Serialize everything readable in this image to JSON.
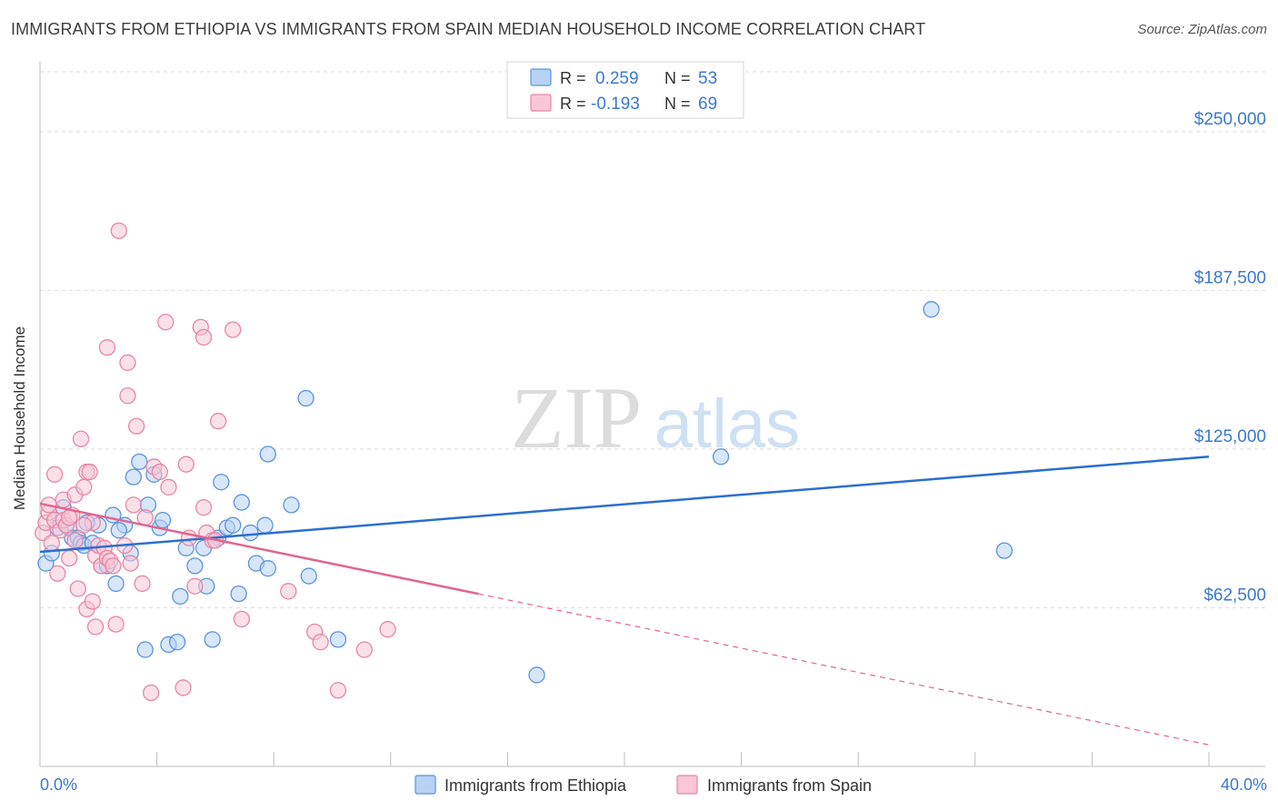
{
  "title": "IMMIGRANTS FROM ETHIOPIA VS IMMIGRANTS FROM SPAIN MEDIAN HOUSEHOLD INCOME CORRELATION CHART",
  "source": "Source: ZipAtlas.com",
  "watermark": {
    "zip": "ZIP",
    "atlas": "atlas"
  },
  "legend": {
    "ethiopia": {
      "r_label": "R =",
      "r_value": "0.259",
      "n_label": "N =",
      "n_value": "53"
    },
    "spain": {
      "r_label": "R =",
      "r_value": "-0.193",
      "n_label": "N =",
      "n_value": "69"
    }
  },
  "colors": {
    "ethiopia": "#5b93e0",
    "ethiopia_fill": "#b8d2f5",
    "ethiopia_line": "#2a6fcf",
    "spain": "#e686a6",
    "spain_fill": "#f8c6d6",
    "spain_line": "#e0668e",
    "accent_text": "#3a78d0"
  },
  "chart_data": {
    "type": "scatter",
    "title": "IMMIGRANTS FROM ETHIOPIA VS IMMIGRANTS FROM SPAIN MEDIAN HOUSEHOLD INCOME CORRELATION CHART",
    "xlabel": "",
    "ylabel": "Median Household Income",
    "xlim": [
      0,
      40
    ],
    "ylim": [
      0,
      275000
    ],
    "x_tick_labels": [
      "0.0%",
      "40.0%"
    ],
    "y_ticks": [
      {
        "value": 62500,
        "label": "$62,500"
      },
      {
        "value": 125000,
        "label": "$125,000"
      },
      {
        "value": 187500,
        "label": "$187,500"
      },
      {
        "value": 250000,
        "label": "$250,000"
      }
    ],
    "series": [
      {
        "name": "Immigrants from Ethiopia",
        "r": 0.259,
        "n": 53,
        "trend": {
          "x": [
            0,
            40
          ],
          "y": [
            84500,
            122000
          ]
        },
        "points": [
          [
            0.2,
            80000
          ],
          [
            0.4,
            84000
          ],
          [
            0.6,
            94000
          ],
          [
            0.8,
            102000
          ],
          [
            1.0,
            94000
          ],
          [
            1.1,
            90000
          ],
          [
            1.3,
            90000
          ],
          [
            1.4,
            88000
          ],
          [
            1.5,
            87000
          ],
          [
            1.8,
            88000
          ],
          [
            2.0,
            95000
          ],
          [
            2.1,
            79000
          ],
          [
            2.3,
            79000
          ],
          [
            2.5,
            99000
          ],
          [
            2.6,
            72000
          ],
          [
            2.9,
            95000
          ],
          [
            3.1,
            84000
          ],
          [
            3.2,
            114000
          ],
          [
            3.4,
            120000
          ],
          [
            3.6,
            46000
          ],
          [
            3.7,
            103000
          ],
          [
            3.9,
            115000
          ],
          [
            4.1,
            94000
          ],
          [
            4.2,
            97000
          ],
          [
            4.4,
            48000
          ],
          [
            4.7,
            49000
          ],
          [
            4.8,
            67000
          ],
          [
            5.0,
            86000
          ],
          [
            5.3,
            79000
          ],
          [
            5.6,
            86000
          ],
          [
            5.7,
            71000
          ],
          [
            5.9,
            50000
          ],
          [
            6.1,
            90000
          ],
          [
            6.2,
            112000
          ],
          [
            6.4,
            94000
          ],
          [
            6.6,
            95000
          ],
          [
            6.8,
            68000
          ],
          [
            6.9,
            104000
          ],
          [
            7.2,
            92000
          ],
          [
            7.4,
            80000
          ],
          [
            7.7,
            95000
          ],
          [
            7.8,
            78000
          ],
          [
            7.8,
            123000
          ],
          [
            8.6,
            103000
          ],
          [
            9.1,
            145000
          ],
          [
            9.2,
            75000
          ],
          [
            10.2,
            50000
          ],
          [
            17.0,
            36000
          ],
          [
            23.3,
            122000
          ],
          [
            30.5,
            180000
          ],
          [
            33.0,
            85000
          ],
          [
            1.6,
            96000
          ],
          [
            2.7,
            93000
          ]
        ]
      },
      {
        "name": "Immigrants from Spain",
        "r": -0.193,
        "n": 69,
        "trend": {
          "x": [
            0,
            15
          ],
          "y": [
            103500,
            68000
          ]
        },
        "trend_dashed": {
          "x": [
            15,
            40
          ],
          "y": [
            68000,
            8500
          ]
        },
        "points": [
          [
            0.1,
            92000
          ],
          [
            0.2,
            96000
          ],
          [
            0.3,
            100000
          ],
          [
            0.3,
            103000
          ],
          [
            0.4,
            88000
          ],
          [
            0.5,
            97000
          ],
          [
            0.5,
            115000
          ],
          [
            0.6,
            76000
          ],
          [
            0.7,
            93000
          ],
          [
            0.8,
            97000
          ],
          [
            0.8,
            105000
          ],
          [
            0.9,
            95000
          ],
          [
            1.0,
            82000
          ],
          [
            1.1,
            99000
          ],
          [
            1.2,
            107000
          ],
          [
            1.2,
            89000
          ],
          [
            1.3,
            70000
          ],
          [
            1.4,
            129000
          ],
          [
            1.5,
            110000
          ],
          [
            1.6,
            62000
          ],
          [
            1.6,
            116000
          ],
          [
            1.7,
            116000
          ],
          [
            1.8,
            96000
          ],
          [
            1.8,
            65000
          ],
          [
            1.9,
            83000
          ],
          [
            1.9,
            55000
          ],
          [
            2.0,
            87000
          ],
          [
            2.1,
            79000
          ],
          [
            2.2,
            86000
          ],
          [
            2.3,
            165000
          ],
          [
            2.3,
            82000
          ],
          [
            2.4,
            81000
          ],
          [
            2.5,
            79000
          ],
          [
            2.6,
            56000
          ],
          [
            2.7,
            211000
          ],
          [
            2.9,
            87000
          ],
          [
            3.0,
            159000
          ],
          [
            3.0,
            146000
          ],
          [
            3.1,
            80000
          ],
          [
            3.2,
            103000
          ],
          [
            3.3,
            134000
          ],
          [
            3.5,
            72000
          ],
          [
            3.8,
            29000
          ],
          [
            3.9,
            118000
          ],
          [
            4.1,
            116000
          ],
          [
            4.3,
            175000
          ],
          [
            4.4,
            110000
          ],
          [
            4.9,
            31000
          ],
          [
            5.0,
            119000
          ],
          [
            5.1,
            90000
          ],
          [
            5.3,
            71000
          ],
          [
            5.5,
            173000
          ],
          [
            5.6,
            169000
          ],
          [
            5.6,
            102000
          ],
          [
            5.7,
            92000
          ],
          [
            5.9,
            89000
          ],
          [
            6.0,
            89000
          ],
          [
            6.1,
            136000
          ],
          [
            6.6,
            172000
          ],
          [
            6.9,
            58000
          ],
          [
            8.5,
            69000
          ],
          [
            9.4,
            53000
          ],
          [
            9.6,
            49000
          ],
          [
            10.2,
            30000
          ],
          [
            11.1,
            46000
          ],
          [
            11.9,
            54000
          ],
          [
            1.0,
            98000
          ],
          [
            3.6,
            98000
          ],
          [
            1.5,
            95000
          ]
        ]
      }
    ],
    "legend_position": "top-center",
    "bottom_legend": [
      "Immigrants from Ethiopia",
      "Immigrants from Spain"
    ]
  }
}
